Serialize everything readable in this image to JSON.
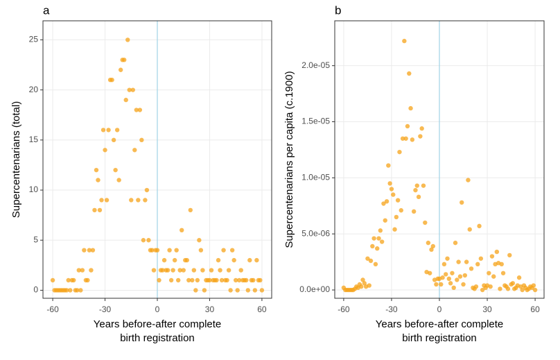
{
  "chart_data": [
    {
      "type": "scatter",
      "title": "a",
      "xlabel": [
        "Years before-after complete",
        "birth registration"
      ],
      "ylabel": "Supercentenarians (total)",
      "color": "#f5a31a",
      "vline": 0,
      "vline_color": "#9fd3e6",
      "grid": true,
      "xlim": [
        -65.6,
        65.6
      ],
      "xticks": [
        -60,
        -30,
        0,
        30,
        60
      ],
      "ylim": [
        -0.8,
        26.9
      ],
      "yticks": [
        0,
        5,
        10,
        15,
        20,
        25
      ],
      "x": [
        -60,
        -59,
        -58,
        -57,
        -56,
        -55,
        -54,
        -53,
        -52,
        -51,
        -50,
        -49,
        -48,
        -47,
        -46,
        -45,
        -44,
        -43,
        -42,
        -41,
        -40,
        -39,
        -38,
        -37,
        -36,
        -35,
        -34,
        -33,
        -32,
        -31,
        -30,
        -29,
        -28,
        -27,
        -26,
        -25,
        -24,
        -23,
        -22,
        -21,
        -20,
        -19,
        -18,
        -17,
        -16,
        -15,
        -14,
        -13,
        -12,
        -11,
        -10,
        -9,
        -8,
        -7,
        -6,
        -5,
        -4,
        -3,
        -2,
        -1,
        0,
        1,
        2,
        3,
        4,
        5,
        6,
        7,
        8,
        9,
        10,
        11,
        12,
        13,
        14,
        15,
        16,
        17,
        18,
        19,
        20,
        21,
        22,
        23,
        24,
        25,
        26,
        27,
        28,
        29,
        30,
        31,
        32,
        33,
        34,
        35,
        36,
        37,
        38,
        39,
        40,
        41,
        42,
        43,
        44,
        45,
        46,
        47,
        48,
        49,
        50,
        51,
        52,
        53,
        54,
        55,
        56,
        57,
        58,
        59,
        60
      ],
      "y": [
        1,
        0,
        0,
        0,
        0,
        0,
        0,
        0,
        0,
        1,
        0,
        1,
        1,
        0,
        0,
        2,
        0,
        2,
        4,
        1,
        1,
        4,
        2,
        4,
        8,
        12,
        11,
        8,
        9,
        16,
        14,
        9,
        16,
        21,
        21,
        15,
        12,
        16,
        11,
        22,
        23,
        23,
        19,
        25,
        20,
        9,
        20,
        14,
        18,
        9,
        18,
        15,
        5,
        9,
        10,
        5,
        4,
        4,
        2,
        4,
        4,
        1,
        2,
        2,
        3,
        2,
        2,
        4,
        1,
        2,
        3,
        4,
        1,
        2,
        6,
        2,
        3,
        3,
        1,
        8,
        1,
        2,
        0,
        1,
        5,
        4,
        2,
        0,
        1,
        1,
        1,
        2,
        1,
        1,
        1,
        3,
        2,
        1,
        4,
        1,
        1,
        2,
        0,
        4,
        3,
        1,
        0,
        1,
        2,
        1,
        1,
        1,
        0,
        3,
        1,
        1,
        0,
        3,
        1,
        1,
        0
      ]
    },
    {
      "type": "scatter",
      "title": "b",
      "xlabel": [
        "Years before-after complete",
        "birth registration"
      ],
      "ylabel": "Supercentenarians per capita (c.1900)",
      "color": "#f5a31a",
      "vline": 0,
      "vline_color": "#9fd3e6",
      "grid": true,
      "xlim": [
        -65.6,
        65.6
      ],
      "xticks": [
        -60,
        -30,
        0,
        30,
        60
      ],
      "ylim": [
        -7.4e-07,
        2.4e-05
      ],
      "yticks": [
        {
          "value": 0,
          "label": "0.0e+00"
        },
        {
          "value": 5e-06,
          "label": "5.0e-06"
        },
        {
          "value": 1e-05,
          "label": "1.0e-05"
        },
        {
          "value": 1.5e-05,
          "label": "1.5e-05"
        },
        {
          "value": 2e-05,
          "label": "2.0e-05"
        }
      ],
      "x": [
        -60,
        -59,
        -58,
        -57,
        -56,
        -55,
        -54,
        -53,
        -52,
        -51,
        -50,
        -49,
        -48,
        -47,
        -46,
        -45,
        -44,
        -43,
        -42,
        -41,
        -40,
        -39,
        -38,
        -37,
        -36,
        -35,
        -34,
        -33,
        -32,
        -31,
        -30,
        -29,
        -28,
        -27,
        -26,
        -25,
        -24,
        -23,
        -22,
        -21,
        -20,
        -19,
        -18,
        -17,
        -16,
        -15,
        -14,
        -13,
        -12,
        -11,
        -10,
        -9,
        -8,
        -7,
        -6,
        -5,
        -4,
        -3,
        -2,
        -1,
        0,
        1,
        2,
        3,
        4,
        5,
        6,
        7,
        8,
        9,
        10,
        11,
        12,
        13,
        14,
        15,
        16,
        17,
        18,
        19,
        20,
        21,
        22,
        23,
        24,
        25,
        26,
        27,
        28,
        29,
        30,
        31,
        32,
        33,
        34,
        35,
        36,
        37,
        38,
        39,
        40,
        41,
        42,
        43,
        44,
        45,
        46,
        47,
        48,
        49,
        50,
        51,
        52,
        53,
        54,
        55,
        56,
        57,
        58,
        59,
        60
      ],
      "y": [
        2e-07,
        0,
        0,
        0,
        0,
        0,
        0,
        1e-07,
        3e-07,
        2e-07,
        5e-07,
        3e-07,
        9e-07,
        6e-07,
        3e-07,
        2.8e-06,
        4e-07,
        2.6e-06,
        3.9e-06,
        4.6e-06,
        2.3e-06,
        3.7e-06,
        4.6e-06,
        5.3e-06,
        4.3e-06,
        7.7e-06,
        6.2e-06,
        7.9e-06,
        1.11e-05,
        9.5e-06,
        9e-06,
        8.5e-06,
        5.4e-06,
        6.5e-06,
        8e-06,
        1.23e-05,
        7.1e-06,
        1.35e-05,
        2.22e-05,
        1.35e-05,
        1.46e-05,
        1.93e-05,
        1.62e-05,
        1.34e-05,
        7e-06,
        8.9e-06,
        9.3e-06,
        8.3e-06,
        1.37e-05,
        1.44e-05,
        9.3e-06,
        6e-06,
        1.6e-06,
        4.2e-06,
        1.5e-06,
        3.6e-06,
        3.9e-06,
        9e-07,
        5e-07,
        1e-06,
        1e-06,
        5e-07,
        1.1e-06,
        2.3e-06,
        1.4e-06,
        2.8e-06,
        1e-06,
        6e-07,
        1.5e-06,
        2e-07,
        4.2e-06,
        9e-07,
        2.5e-06,
        1.2e-06,
        7.8e-06,
        5e-07,
        1.3e-06,
        2.5e-06,
        9.8e-06,
        5.4e-06,
        1.9e-06,
        2e-07,
        1e-07,
        3e-07,
        2.3e-06,
        5.7e-06,
        2.8e-06,
        0,
        4e-07,
        2e-07,
        4e-07,
        1.5e-06,
        3e-07,
        3e-06,
        1.2e-06,
        2.3e-06,
        3.4e-06,
        2.4e-06,
        1e-07,
        2.3e-06,
        1.5e-06,
        4e-07,
        3e-07,
        1e-07,
        3.1e-06,
        5e-07,
        6e-07,
        1e-07,
        2e-07,
        4e-07,
        1.1e-06,
        3e-07,
        0,
        4e-07,
        2e-07,
        0,
        1e-07,
        3e-07,
        2e-07,
        4e-07,
        0
      ]
    }
  ]
}
